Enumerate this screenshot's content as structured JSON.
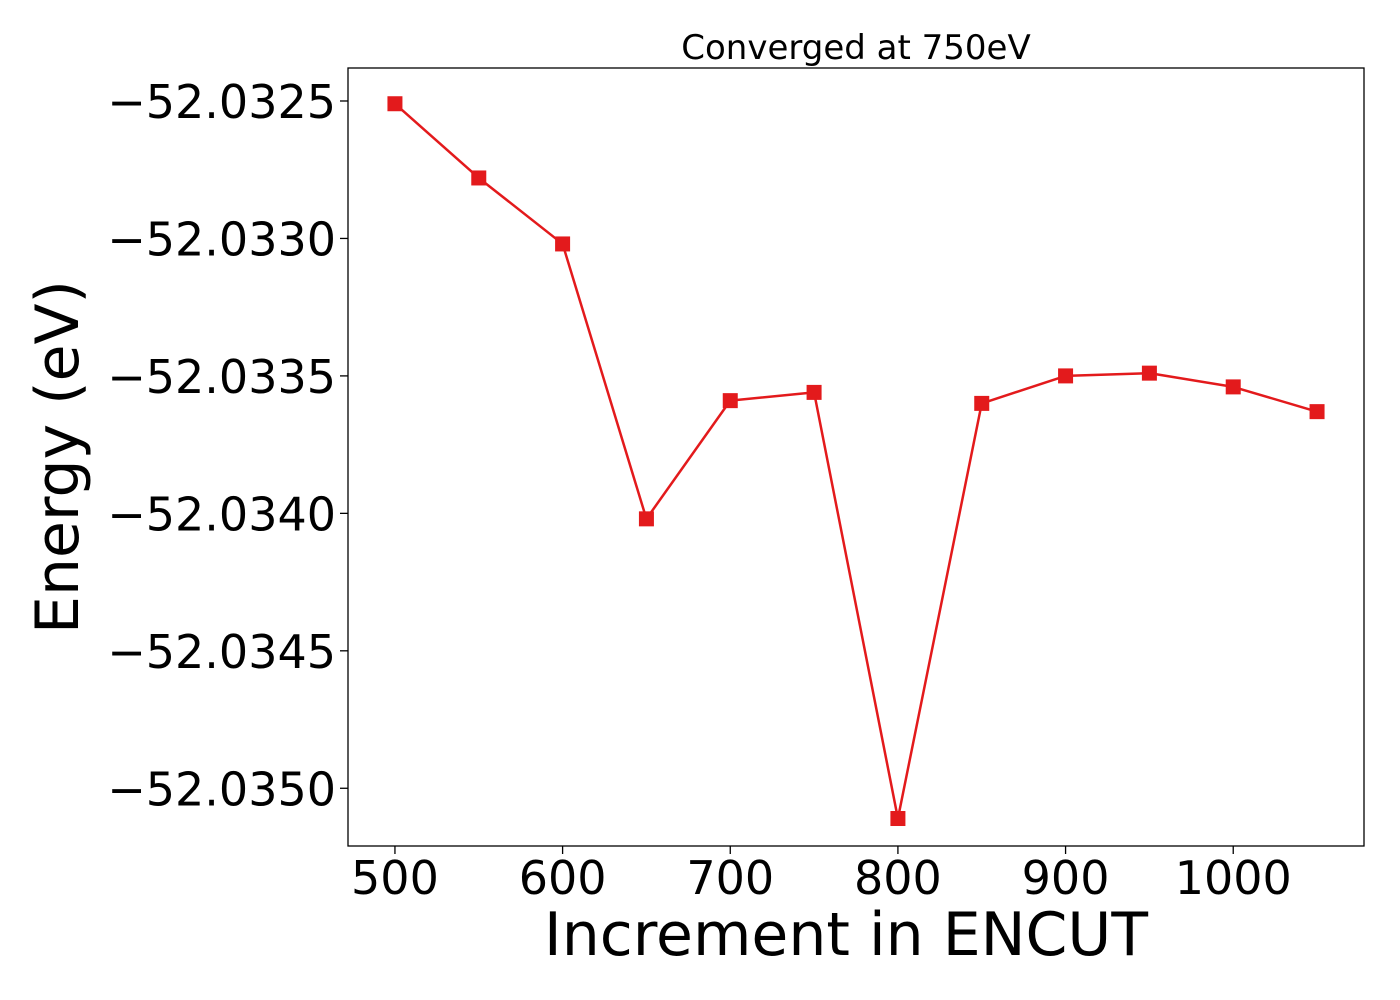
{
  "chart_data": {
    "type": "line",
    "title": "Converged at 750eV",
    "xlabel": "Increment in ENCUT",
    "ylabel": "Energy (eV)",
    "x": [
      500,
      550,
      600,
      650,
      700,
      750,
      800,
      850,
      900,
      950,
      1000,
      1050
    ],
    "series": [
      {
        "values": [
          -52.03251,
          -52.03278,
          -52.03302,
          -52.03402,
          -52.03359,
          -52.03356,
          -52.03511,
          -52.0336,
          -52.0335,
          -52.03349,
          -52.03354,
          -52.03363
        ],
        "color": "#e31a1c",
        "marker": "square"
      }
    ],
    "xlim": [
      472,
      1078
    ],
    "ylim": [
      -52.03521,
      -52.03238
    ],
    "xticks": [
      500,
      600,
      700,
      800,
      900,
      1000
    ],
    "xtick_labels": [
      "500",
      "600",
      "700",
      "800",
      "900",
      "1000"
    ],
    "yticks": [
      -52.0325,
      -52.033,
      -52.0335,
      -52.034,
      -52.0345,
      -52.035
    ],
    "ytick_labels": [
      "−52.0325",
      "−52.0330",
      "−52.0335",
      "−52.0340",
      "−52.0345",
      "−52.0350"
    ],
    "grid": false,
    "legend": "none"
  }
}
